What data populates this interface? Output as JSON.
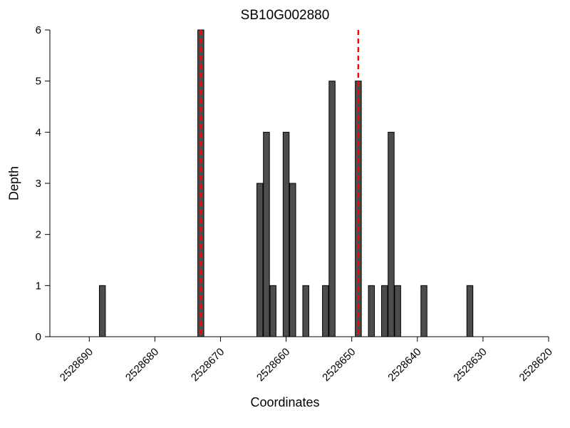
{
  "chart_data": {
    "type": "bar",
    "title": "SB10G002880",
    "xlabel": "Coordinates",
    "ylabel": "Depth",
    "x_reversed": true,
    "xlim": [
      2528696,
      2528620
    ],
    "ylim": [
      0,
      6
    ],
    "xticks": [
      2528690,
      2528680,
      2528670,
      2528660,
      2528650,
      2528640,
      2528630,
      2528620
    ],
    "yticks": [
      0,
      1,
      2,
      3,
      4,
      5,
      6
    ],
    "bar_color": "#4d4d4d",
    "bar_edge_color": "#000000",
    "axis_color": "#000000",
    "background_color": "#ffffff",
    "bars": [
      {
        "coord": 2528688,
        "depth": 1
      },
      {
        "coord": 2528673,
        "depth": 6
      },
      {
        "coord": 2528664,
        "depth": 3
      },
      {
        "coord": 2528663,
        "depth": 4
      },
      {
        "coord": 2528662,
        "depth": 1
      },
      {
        "coord": 2528660,
        "depth": 4
      },
      {
        "coord": 2528659,
        "depth": 3
      },
      {
        "coord": 2528657,
        "depth": 1
      },
      {
        "coord": 2528654,
        "depth": 1
      },
      {
        "coord": 2528653,
        "depth": 5
      },
      {
        "coord": 2528649,
        "depth": 5
      },
      {
        "coord": 2528647,
        "depth": 1
      },
      {
        "coord": 2528645,
        "depth": 1
      },
      {
        "coord": 2528644,
        "depth": 4
      },
      {
        "coord": 2528643,
        "depth": 1
      },
      {
        "coord": 2528639,
        "depth": 1
      },
      {
        "coord": 2528632,
        "depth": 1
      }
    ],
    "markers": [
      {
        "coord": 2528673,
        "color": "#ff0000",
        "style": "dashed"
      },
      {
        "coord": 2528649,
        "color": "#ff0000",
        "style": "dashed"
      }
    ]
  }
}
